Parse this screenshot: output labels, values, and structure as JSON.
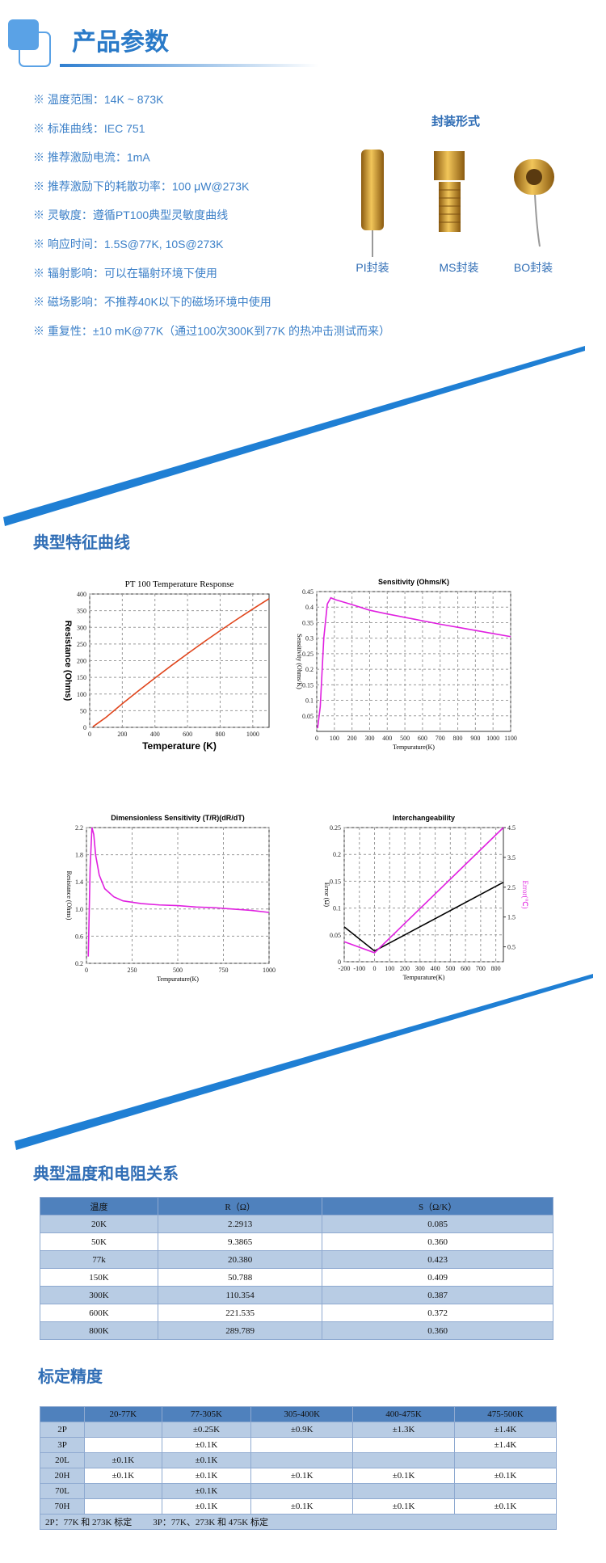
{
  "header": {
    "title": "产品参数"
  },
  "specs": [
    "※ 温度范围：14K ~ 873K",
    "※ 标准曲线：IEC 751",
    "※ 推荐激励电流：1mA",
    "※ 推荐激励下的耗散功率：100 μW@273K",
    "※ 灵敏度：遵循PT100典型灵敏度曲线",
    "※ 响应时间：1.5S@77K, 10S@273K",
    "※ 辐射影响：可以在辐射环境下使用",
    "※ 磁场影响：不推荐40K以下的磁场环境中使用",
    "※ 重复性：±10 mK@77K（通过100次300K到77K 的热冲击测试而来）"
  ],
  "packages": {
    "title": "封装形式",
    "items": [
      "PI封装",
      "MS封装",
      "BO封装"
    ]
  },
  "curves": {
    "title": "典型特征曲线"
  },
  "chart_data": [
    {
      "type": "line",
      "title": "PT 100 Temperature Response",
      "x_label": "Temperature (K)",
      "y_label": "Resistance (Ohms)",
      "xlim": [
        0,
        1100
      ],
      "ylim": [
        0,
        400
      ],
      "xticks": [
        0,
        200,
        400,
        600,
        800,
        1000
      ],
      "yticks": [
        0,
        50,
        100,
        150,
        200,
        250,
        300,
        350,
        400
      ],
      "grid": true,
      "x": [
        20,
        100,
        200,
        300,
        400,
        500,
        600,
        700,
        800,
        900,
        1000,
        1100
      ],
      "series": [
        {
          "color": "#e0451c",
          "values": [
            2,
            30,
            71,
            110,
            148,
            185,
            221,
            256,
            290,
            323,
            355,
            386
          ]
        }
      ]
    },
    {
      "type": "line",
      "title": "Sensitivity (Ohms/K)",
      "x_label": "Tempurature(K)",
      "y_label": "Sensitivity (Ohms/K)",
      "xlim": [
        0,
        1100
      ],
      "ylim": [
        0,
        0.45
      ],
      "xticks": [
        0,
        100,
        200,
        300,
        400,
        500,
        600,
        700,
        800,
        900,
        1000,
        1100
      ],
      "yticks": [
        0.05,
        0.1,
        0.15,
        0.2,
        0.25,
        0.3,
        0.35,
        0.4,
        0.45
      ],
      "grid": true,
      "x": [
        5,
        20,
        40,
        60,
        80,
        100,
        200,
        300,
        400,
        500,
        600,
        700,
        800,
        900,
        1000,
        1100
      ],
      "series": [
        {
          "color": "#e020e0",
          "values": [
            0.01,
            0.08,
            0.3,
            0.41,
            0.43,
            0.425,
            0.408,
            0.39,
            0.378,
            0.367,
            0.356,
            0.345,
            0.335,
            0.325,
            0.315,
            0.305
          ]
        }
      ]
    },
    {
      "type": "line",
      "title": "Dimensionless Sensitivity (T/R)(dR/dT)",
      "x_label": "Tempurature(K)",
      "y_label": "Resistance (Ohms)",
      "xlim": [
        0,
        1000
      ],
      "ylim": [
        0.2,
        2.2
      ],
      "xticks": [
        0,
        250,
        500,
        750,
        1000
      ],
      "yticks": [
        0.2,
        0.6,
        {
          "value": 1,
          "label": "1.0"
        },
        1.4,
        1.8,
        2.2
      ],
      "grid": true,
      "x": [
        10,
        20,
        30,
        40,
        50,
        70,
        100,
        150,
        200,
        300,
        400,
        500,
        600,
        700,
        800,
        900,
        1000
      ],
      "series": [
        {
          "color": "#e020e0",
          "values": [
            0.3,
            1.6,
            2.2,
            2.1,
            1.8,
            1.5,
            1.3,
            1.18,
            1.12,
            1.08,
            1.06,
            1.05,
            1.03,
            1.02,
            1,
            0.98,
            0.95
          ]
        }
      ]
    },
    {
      "type": "line",
      "title": "Interchangeability",
      "x_label": "Tempurature(K)",
      "y_label": "Error (Ω)",
      "y2_label": "Error(℃)",
      "xlim": [
        -200,
        850
      ],
      "ylim": [
        0,
        0.25
      ],
      "y2lim": [
        0,
        4.5
      ],
      "xticks": [
        -200,
        -100,
        0,
        100,
        200,
        300,
        400,
        500,
        600,
        700,
        800
      ],
      "yticks": [
        0,
        0.05,
        0.1,
        0.15,
        0.2,
        0.25
      ],
      "y2ticks": [
        0.5,
        1.5,
        2.5,
        3.5,
        4.5
      ],
      "grid": true,
      "x": [
        -200,
        0,
        850
      ],
      "series": [
        {
          "color": "#000000",
          "values": [
            0.065,
            0.02,
            0.148
          ]
        },
        {
          "color": "#e020e0",
          "axis": "y2",
          "values": [
            0.67,
            0.3,
            4.5
          ]
        }
      ]
    }
  ],
  "resistance_table": {
    "title": "典型温度和电阻关系",
    "header": [
      "温度",
      "R（Ω）",
      "S（Ω/K）"
    ],
    "rows": [
      [
        "20K",
        "2.2913",
        "0.085"
      ],
      [
        "50K",
        "9.3865",
        "0.360"
      ],
      [
        "77k",
        "20.380",
        "0.423"
      ],
      [
        "150K",
        "50.788",
        "0.409"
      ],
      [
        "300K",
        "110.354",
        "0.387"
      ],
      [
        "600K",
        "221.535",
        "0.372"
      ],
      [
        "800K",
        "289.789",
        "0.360"
      ]
    ]
  },
  "accuracy_table": {
    "title": "标定精度",
    "header": [
      "20-77K",
      "77-305K",
      "305-400K",
      "400-475K",
      "475-500K"
    ],
    "rows": [
      {
        "label": "2P",
        "cells": [
          null,
          "±0.25K",
          "±0.9K",
          "±1.3K",
          "±1.4K"
        ]
      },
      {
        "label": "3P",
        "cells": [
          null,
          "±0.1K",
          null,
          null,
          "±1.4K"
        ]
      },
      {
        "label": "20L",
        "cells": [
          "±0.1K",
          "±0.1K",
          null,
          null,
          null
        ]
      },
      {
        "label": "20H",
        "cells": [
          "±0.1K",
          "±0.1K",
          "±0.1K",
          "±0.1K",
          "±0.1K"
        ]
      },
      {
        "label": "70L",
        "cells": [
          null,
          "±0.1K",
          null,
          null,
          null
        ]
      },
      {
        "label": "70H",
        "cells": [
          null,
          "±0.1K",
          "±0.1K",
          "±0.1K",
          "±0.1K"
        ]
      }
    ],
    "notes": [
      "2P：77K 和 273K 标定",
      "3P：77K、273K 和 475K 标定"
    ]
  }
}
